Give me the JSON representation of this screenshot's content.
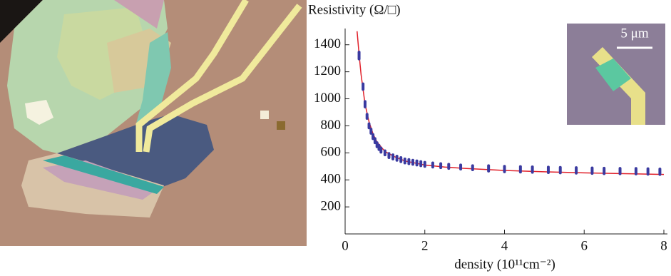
{
  "chart_data": {
    "type": "scatter",
    "title": "Resistivity (Ω/□)",
    "x_label": "density (10¹¹cm⁻²)",
    "inset_scale_label": "5 μm",
    "xlim": [
      0,
      8.1
    ],
    "xticks": [
      0,
      2,
      4,
      6,
      8
    ],
    "ylim": [
      0,
      1520
    ],
    "yticks": [
      200,
      400,
      600,
      800,
      1000,
      1200,
      1400
    ],
    "series": [
      {
        "color": "#3a3aa0",
        "x": [
          0.35,
          0.45,
          0.5,
          0.55,
          0.6,
          0.65,
          0.7,
          0.75,
          0.8,
          0.85,
          0.9,
          1.0,
          1.1,
          1.2,
          1.3,
          1.4,
          1.5,
          1.6,
          1.7,
          1.8,
          1.9,
          2.0,
          2.2,
          2.4,
          2.6,
          2.9,
          3.2,
          3.6,
          4.0,
          4.4,
          4.7,
          5.1,
          5.4,
          5.8,
          6.2,
          6.5,
          6.9,
          7.3,
          7.6,
          7.9
        ],
        "values": [
          1320,
          1090,
          960,
          870,
          800,
          760,
          720,
          690,
          660,
          640,
          620,
          600,
          580,
          570,
          560,
          550,
          540,
          535,
          530,
          525,
          520,
          515,
          510,
          505,
          500,
          495,
          490,
          485,
          480,
          478,
          476,
          474,
          472,
          470,
          468,
          466,
          465,
          464,
          462,
          460
        ],
        "errors": [
          25,
          20,
          20,
          15,
          15,
          15,
          15,
          15,
          15,
          15,
          15,
          15,
          15,
          15,
          15,
          15,
          15,
          15,
          15,
          15,
          15,
          15,
          15,
          15,
          15,
          15,
          15,
          20,
          20,
          20,
          20,
          20,
          20,
          20,
          20,
          20,
          20,
          20,
          20,
          20
        ]
      },
      {
        "color": "#e0202a",
        "x": [
          0.3,
          0.35,
          0.4,
          0.5,
          0.6,
          0.7,
          0.8,
          1.0,
          1.25,
          1.5,
          2.0,
          2.5,
          3.0,
          4.0,
          5.0,
          6.0,
          7.0,
          8.0
        ],
        "values": [
          1500,
          1330,
          1180,
          960,
          830,
          740,
          680,
          610,
          570,
          540,
          510,
          495,
          485,
          470,
          460,
          452,
          446,
          440
        ]
      }
    ]
  }
}
